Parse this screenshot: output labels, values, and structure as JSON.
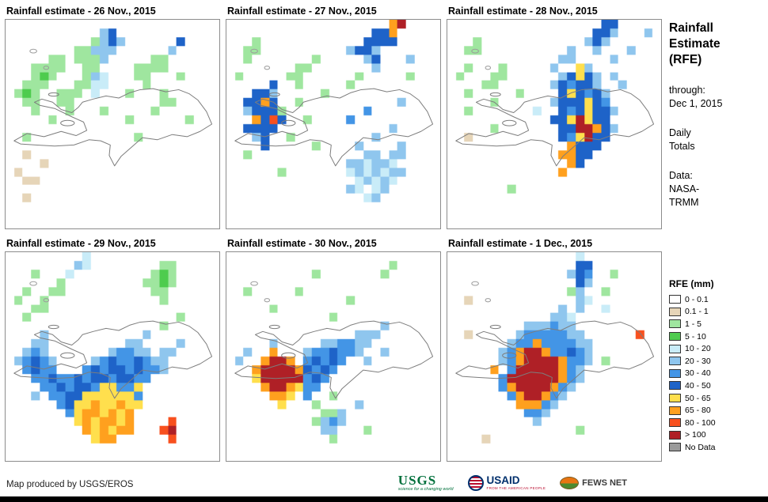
{
  "panels": [
    {
      "title": "Rainfall estimate - 26 Nov., 2015",
      "grid": [
        "WWWWWWWWWWWWWWWWWWWWWWWWW",
        "WWWWWWWWWWWCBWWWWWWWWWWWW",
        "WWWWWWWWWWgCBCWWWWWWBWWWW",
        "WWWWWWWWggCCCWWWWWWCWWWWW",
        "WWWWWggWgggCWWWWWggWWWWWW",
        "WWWggggWWggWWWWggggWWWWWW",
        "WWWgGgWWWgCcWWWggWWWgWWWW",
        "WWgggWWWggccWWWWgWWWWWWWW",
        "WgGgWWgggWcWWWgWWWgWWWWWW",
        "WWggWWggWWWWWWWWWWggWWWWW",
        "WWWgWWWgWWWgWWWWWgWWWWWWW",
        "WWWWWgWWWWWWWWgWWWWWWgWWW",
        "WWWWWWWWWWWWWWWWWWWWWWWWW",
        "WWgWWWWWWWWWWWWgWWWWWWWWW",
        "WWWWWWWWWWWWWWWWWWWWWWWWW",
        "WWTWWWWWWWWWWWWWWWWWWWWWW",
        "WWWWTWWWWWWWWWWWWWWWWWWWW",
        "WTWWWWWWWWWWWWWWWWWWWWWWW",
        "WWTTWWWWWWWWWWWWWWWWWWWWW",
        "WWWWWWWWWWWWWWWWWWWWWWWWW",
        "WWTWWWWWWWWWWWWWWWWWWWWWW",
        "WWWWWWWWWWWWWWWWWWWWWWWWW",
        "WWWWWWWWWWWWWWWWWWWWWWWWW",
        "WWWWWWWWWWWWWWWWWWWWWWWWW"
      ]
    },
    {
      "title": "Rainfall estimate - 27 Nov., 2015",
      "grid": [
        "WWWWWWWWWWWWWWWWWWWoRWWWW",
        "WWWWWWWWWWWWWWWWWBBoWWWWW",
        "WWWgWWWWWWWWWWWWBBBBWWWWW",
        "WWggWWWWWWWWWWCBBCWWWWWWW",
        "WWgWWWWWWWgWWWWWCBWWWCWWW",
        "WWWWWWWWggWWWWWWWCWWWWWWW",
        "WgWWWWWggWWWWWWgWWWWWgWWW",
        "WWWWWBWWgWWWWWgWWWWWWWWWW",
        "WWWBBCWWWWWgWWWWWWWWWWWWW",
        "WWBBoBWWgWWWWWWWWWWWCWWWW",
        "WWCBBBgWWWWWWWWWbWWWWWWWW",
        "WWWoBrBWWgWWWWbWWWWWWWWWW",
        "WWBBBBWWWWWWWWWWWWWCWWWWW",
        "WWWCBWWgWWWWWWWWWCWWWWWWW",
        "WWWWBWWWWWgWWWWCWWWWCWWWW",
        "WWgWWWWWWWWWWWWWCCWCCWWWW",
        "WWWWWWWWWWWWWWCCcCCcWWWWW",
        "WWWWWWgWWWWWWWcCcCcCCWWWW",
        "WWWWWWWWWWWWWWWcCcCcWWWWW",
        "WWWWWWWWWWWWWWCcWcCWWWWWW",
        "WWWWWWWWWWWWWWWWcCWWWWWWW",
        "WWWWWWWWWWWWWWWWWWWWWWWWW",
        "WWWWWWWWWWWWWWWWWWWWWWWWW",
        "WWWWWWWWWWWWWWWWWWWWWWWWW"
      ]
    },
    {
      "title": "Rainfall estimate - 28 Nov., 2015",
      "grid": [
        "WWWWWWWWWWWWWWWWWWBBWWWWW",
        "WWWWWWWWWWWWWWWWWBBCWWWCW",
        "WWWgWWWWWWWWWWWWCBCWWWWWW",
        "WWggWWWWWWWWWWCWWCWWWCWWW",
        "WWWWWWWWWWWWWCCWWWWCWWWWW",
        "WWgWWWgWWWWWCWWyCWWWWWWWW",
        "WgWWWggWWWWWWCByBCWCWWWWW",
        "WWWWggWWWWWWCBbBBCWWCWWWW",
        "WWgWWWWWgWWWWByBbBCWWWWWW",
        "WWWWWgWWWWWWCBBByBbWWWWWW",
        "WWgWWWWWWWcWWBbByBBCWWWWW",
        "WWWWWWWWWWWWBByRyBBWWWWWW",
        "WWWWWgWWWWWWWBBRRoBCWWWWW",
        "WWTWWWWWWWWWWBbyRBBWWWWWW",
        "WWWWWWWWWWWWWWoBBBWWWWWWW",
        "WWWWWWWWWWWWWooBBWWWWWWWW",
        "WWWWWWWWWWWWWWoBWWWWWWWWW",
        "WWWWWWWWWWWWWoWWWWWWWWWWW",
        "WWWWWWWWWWWWWWWWWWWWWWWWW",
        "WWWWWWWgWWWWWWWWWWWWWWWWW",
        "WWWWWWWWWWWWWWWWWWWWWWWWW",
        "WWWWWWWWWWWWWWWWWWWWWWWWW",
        "WWWWWWWWWWWWWWWWWWWWWWWWW",
        "WWWWWWWWWWWWWWWWWWWWWWWWW"
      ]
    },
    {
      "title": "Rainfall estimate - 29 Nov., 2015",
      "grid": [
        "WWWWWWWWWcWWWWWWWWWWWWWWW",
        "WWWWWWWWCcWWWWWWWWggWWWWW",
        "WWWgWWWcWWWWWWWWWgGgWWWWW",
        "WWWWWWgWWWWWWWWWggGgWWWWW",
        "WWgWWggWWWWWWWWWWggWWWWWW",
        "WgWWgWWWWWWWWWWWWWgWWWWWW",
        "WWWggWWWWWWWWWWWWWWWWWWWW",
        "WWgWWWWWWWWWWWWWWWWWgWWWW",
        "WWWWWWWWWWWWWWWWWWgWWWWWW",
        "WWWWCWWWWWWWWWWWCWWWWWWWW",
        "WWWCCWWWWWWWWWCCWWWWCWWWW",
        "WWCbCWWWWWWWCbbCCWCCWWWWW",
        "WCbBbCWWWWCbBbbBbCCWWWWWW",
        "WWbBbbWWWbBbBBbBbbCWWWWWW",
        "WWWbbBbbBbBBbBBbbWWWWWWWW",
        "WWWWbbBbBBbyybbyWWWWWWWWW",
        "WWWCWbbBByyyyyybWWWWWWWWW",
        "WWWWWWbByyoyyoyyWWWWWWWWW",
        "WWWWWWWbyooyoyoWWWWWWWWWW",
        "WWWWWWWWyoyooyoWWWWrWWWWW",
        "WWWWWWWWWoyoyooWWWrRWWWWW",
        "WWWWWWWWWWyooWWWWWWrWWWWW",
        "WWWWWWWWWWWWWWWWWWWWWWWWW",
        "WWWWWWWWWWWWWWWWWWWWWWWWW"
      ]
    },
    {
      "title": "Rainfall estimate - 30 Nov., 2015",
      "grid": [
        "WWWWWWWWWWWWWWWWWWWWWWWWW",
        "WWWWWWWWWWWWWWWWWWWgWWWWW",
        "WWWWWWWWWWgWWWWWWWgWWWWWW",
        "WWWWWWWWWWWWWWWWWWWWWWWWW",
        "WWgWWWWWgWWWWWWWWWWWWWWWW",
        "WWWWWWWWWWWWWWgWWWWWWWWWW",
        "WWWWWgWWWWWWWWWWWWWWWWWWW",
        "WWWWWWWWWWWWgWWWWWWWWWWWW",
        "WWWWWWWWWWWWWWWWWWCWWWWWW",
        "WWWWWWWWWWWWWWWCCCWWWWWWW",
        "WWWWWCWWWWWCCbbCCWWWWWWWW",
        "WWCWWoWWWCbbBbbCWWCWWWWWW",
        "WCWWoRRoWbBbBbWWCWWWWWWWW",
        "WWWoRRRRoBbBbWWWWWWWWWWWW",
        "WWWyRRRRRbBbWWWWWWWWWWWWW",
        "WWWWoRRoybbWWWWWWWWWWWWWW",
        "WWWWWooyWbWWgWWWWWWWWWWWW",
        "WWWWWWyWWWgWWWWCWWWWWWWWW",
        "WWWWWWWWWWWggCWWWWWWWWWWW",
        "WWWWWWWWWWgCbCWWWWWWWWWWW",
        "WWWWWWWWWWWCCWWWgWWWWWWWW",
        "WWWWWWWWWWWWgWWWWWWWWWWWW",
        "WWWWWWWWWWWWWWWWWWWWWWWWW",
        "WWWWWWWWWWWWWWWWWWWWWWWWW"
      ]
    },
    {
      "title": "Rainfall estimate - 1 Dec., 2015",
      "grid": [
        "WWWWWWWWWWWWWWWcWWWWWWWWW",
        "WWWWWWWWWWWWWWWBBWWWWWWWW",
        "WWWWWWWWWWWWWWCBbWWgWWWWW",
        "WWWWWWWWWWWWWWWBCWWWWWWWW",
        "WWWWWWWWWWWWWWgCWWgWWWWWW",
        "WWTWWWWWWWWWWWWCcWWWWWWWW",
        "WWWWWWWWWWWWWCWCWWcWWWWWW",
        "WWWWWWWWWWWWCCcWWWWWWWWWW",
        "WWWWWWWWWCCCbCCWWWWWWWWWW",
        "WWTWWWWWCbbbbbCCWWWWWWrWW",
        "WWWWWWWCbbobbbbCCWWWWWWWW",
        "WWWWWWCboRRobbBbCWWWWWWWW",
        "WWWWWWCboRRRRobbCWgWWWWWW",
        "WWWWWoWbRRRRRobCWWWWWWWWW",
        "WWWWWWbRRRRRRobCWWWWWWWWW",
        "WWWWWWboRRRRobCWWWWWWWWWW",
        "WWWWWWWboRRobCWWWWWWWWWWW",
        "WWWWWWWWooobCWWWWWWWWWWWW",
        "WWWWWWWWWbbCWWWWWWWWWWWWW",
        "WWWWWWWWWWCWWWWWWWWWWWWWW",
        "WWWWWWWWWWWWWWWgWWWWWWWWW",
        "WWWWTWWWWWWWWWWWWWWWWWWWW",
        "WWWWWWWWWWWWWWWWWWWWWWWWW",
        "WWWWWWWWWWWWWWWWWWWWWWWWW"
      ]
    }
  ],
  "palette": {
    "W": "#FFFFFF",
    "T": "#E6D5B8",
    "g": "#9FE69F",
    "G": "#4ECC4E",
    "c": "#C9ECF8",
    "C": "#8FC6EE",
    "b": "#4395E6",
    "B": "#1E63C8",
    "y": "#FFDF4D",
    "o": "#FFA01E",
    "r": "#F8501E",
    "R": "#AF2026",
    "N": "#9A9A9A"
  },
  "sidebar": {
    "title": "Rainfall\nEstimate\n(RFE)",
    "through": "through:\nDec 1, 2015",
    "totals": "Daily\nTotals",
    "source": "Data:\nNASA-\nTRMM"
  },
  "legend": {
    "title": "RFE (mm)",
    "items": [
      {
        "label": "0 - 0.1",
        "key": "W"
      },
      {
        "label": "0.1 - 1",
        "key": "T"
      },
      {
        "label": "1 - 5",
        "key": "g"
      },
      {
        "label": "5 - 10",
        "key": "G"
      },
      {
        "label": "10 - 20",
        "key": "c"
      },
      {
        "label": "20 - 30",
        "key": "C"
      },
      {
        "label": "30 - 40",
        "key": "b"
      },
      {
        "label": "40 - 50",
        "key": "B"
      },
      {
        "label": "50 - 65",
        "key": "y"
      },
      {
        "label": "65 - 80",
        "key": "o"
      },
      {
        "label": "80 - 100",
        "key": "r"
      },
      {
        "label": "> 100",
        "key": "R"
      },
      {
        "label": "No Data",
        "key": "N"
      }
    ]
  },
  "footer": {
    "credit": "Map produced by USGS/EROS",
    "logos": {
      "usgs": {
        "text": "USGS",
        "tagline": "science for a changing world",
        "color": "#00703C"
      },
      "usaid": {
        "text": "USAID",
        "tagline": "FROM THE AMERICAN PEOPLE",
        "color": "#002F6C",
        "accent": "#BA0C2F"
      },
      "fewsnet": {
        "text": "FEWS NET",
        "color1": "#E87511",
        "color2": "#4C8A2E"
      }
    }
  }
}
